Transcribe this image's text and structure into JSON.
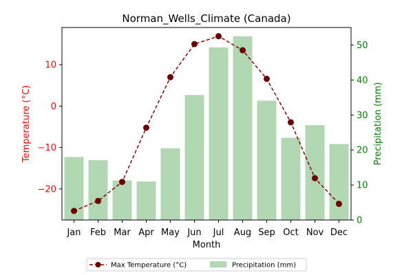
{
  "chart_data": {
    "type": "bar+line",
    "title": "Norman_Wells_Climate (Canada)",
    "xlabel": "Month",
    "ylabel_left": "Temperature (°C)",
    "ylabel_right": "Precipitation (mm)",
    "categories": [
      "Jan",
      "Feb",
      "Mar",
      "Apr",
      "May",
      "Jun",
      "Jul",
      "Aug",
      "Sep",
      "Oct",
      "Nov",
      "Dec"
    ],
    "y_left_ticks": [
      -20,
      -10,
      0,
      10
    ],
    "y_left_range": [
      -27.5,
      19
    ],
    "y_right_ticks": [
      0,
      10,
      20,
      30,
      40,
      50
    ],
    "y_right_range": [
      0,
      55
    ],
    "series": [
      {
        "name": "Max Temperature (°C)",
        "type": "line",
        "axis": "left",
        "color": "#8b0000",
        "values": [
          -25.3,
          -22.9,
          -18.3,
          -5.2,
          7.0,
          15.0,
          16.9,
          13.5,
          6.6,
          -3.9,
          -17.4,
          -23.6
        ]
      },
      {
        "name": "Precipitation (mm)",
        "type": "bar",
        "axis": "right",
        "color": "#b1d8b2",
        "values": [
          18.0,
          17.1,
          11.3,
          11.0,
          20.5,
          35.7,
          49.3,
          52.5,
          34.1,
          23.5,
          27.1,
          21.7
        ]
      }
    ],
    "legend_position": "bottom-center",
    "colors": {
      "left_axis": "#ff0000",
      "right_axis": "#008000",
      "line": "#8b0000",
      "marker": "#6b0000",
      "bar": "#b1d8b2"
    }
  }
}
